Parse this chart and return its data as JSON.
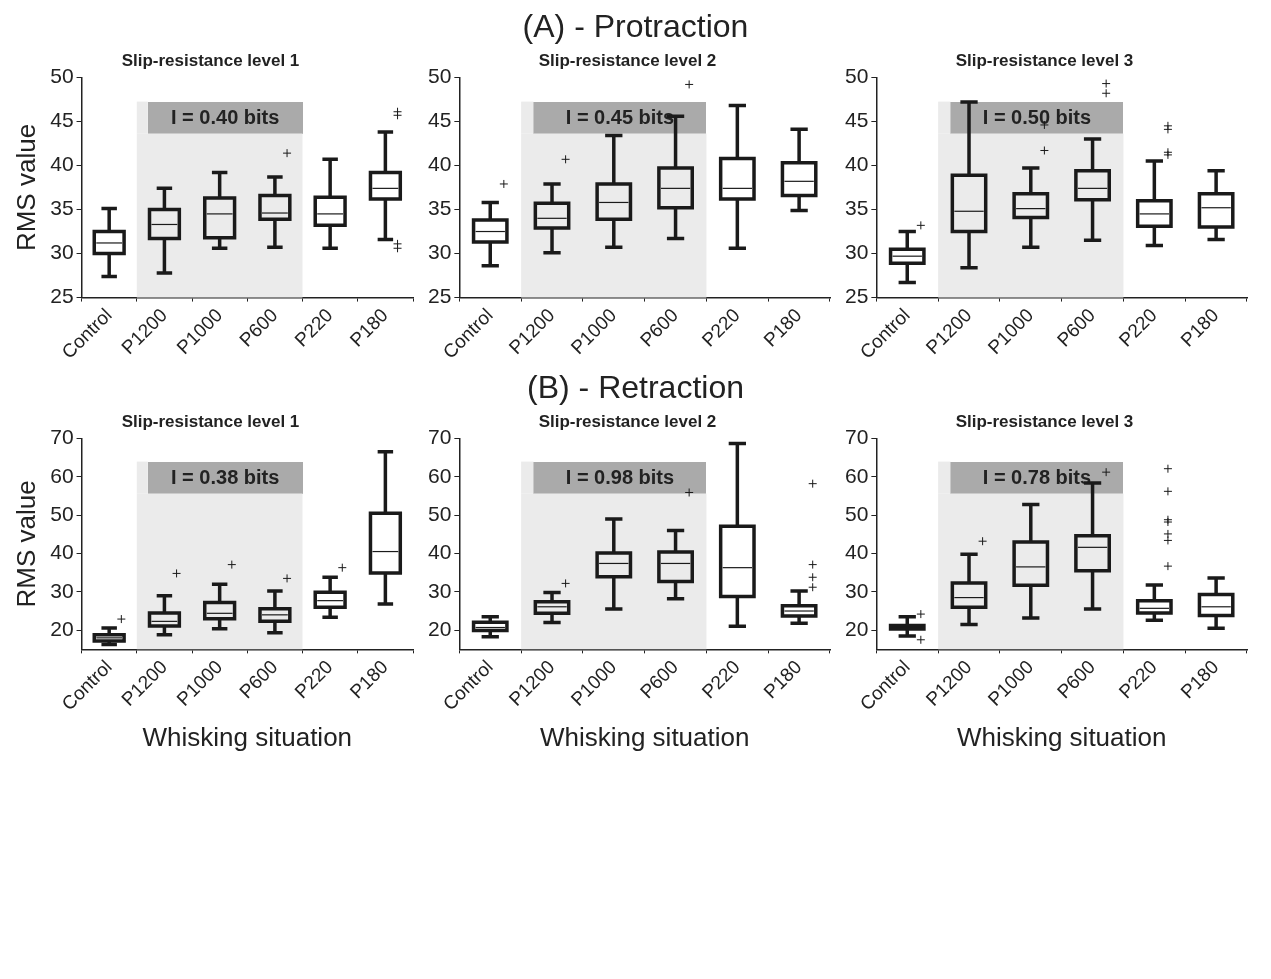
{
  "chart_data": [
    {
      "type": "other",
      "title": "(A) - Protraction"
    },
    {
      "type": "box",
      "title": "Slip-resistance level 1",
      "ylabel": "RMS value",
      "categories": [
        "Control",
        "P1200",
        "P1000",
        "P600",
        "P220",
        "P180"
      ],
      "color": "#1a1a1a",
      "marker": "cross",
      "ylim": [
        25,
        50
      ],
      "yticks": [
        25,
        30,
        35,
        40,
        45,
        50
      ],
      "grid": false,
      "bands": [
        {
          "axis": "x",
          "from": "P1200",
          "to": "P600",
          "label": "I = 0.40 bits",
          "color": "#ebebeb"
        }
      ],
      "boxes": [
        {
          "low": 27.4,
          "q1": 30.0,
          "median": 31.2,
          "q3": 32.5,
          "high": 35.1
        },
        {
          "low": 27.8,
          "q1": 31.7,
          "median": 33.3,
          "q3": 35.0,
          "high": 37.4
        },
        {
          "low": 30.6,
          "q1": 31.8,
          "median": 34.5,
          "q3": 36.3,
          "high": 39.2
        },
        {
          "low": 30.7,
          "q1": 33.9,
          "median": 34.6,
          "q3": 36.6,
          "high": 38.7,
          "outliers": [
            41.4
          ]
        },
        {
          "low": 30.6,
          "q1": 33.2,
          "median": 34.5,
          "q3": 36.4,
          "high": 40.7
        },
        {
          "low": 31.6,
          "q1": 36.2,
          "median": 37.4,
          "q3": 39.2,
          "high": 43.8,
          "outliers": [
            46.1,
            45.7,
            31.1,
            30.6
          ]
        }
      ]
    },
    {
      "type": "box",
      "title": "Slip-resistance level 2",
      "categories": [
        "Control",
        "P1200",
        "P1000",
        "P600",
        "P220",
        "P180"
      ],
      "color": "#1a1a1a",
      "marker": "cross",
      "ylim": [
        25,
        50
      ],
      "yticks": [
        25,
        30,
        35,
        40,
        45,
        50
      ],
      "grid": false,
      "bands": [
        {
          "axis": "x",
          "from": "P1200",
          "to": "P600",
          "label": "I = 0.45 bits",
          "color": "#ebebeb"
        }
      ],
      "boxes": [
        {
          "low": 28.6,
          "q1": 31.3,
          "median": 32.5,
          "q3": 33.8,
          "high": 35.8,
          "outliers": [
            37.9
          ]
        },
        {
          "low": 30.1,
          "q1": 32.9,
          "median": 34.0,
          "q3": 35.7,
          "high": 37.9,
          "outliers": [
            40.7
          ]
        },
        {
          "low": 30.7,
          "q1": 33.9,
          "median": 35.8,
          "q3": 37.9,
          "high": 43.4
        },
        {
          "low": 31.7,
          "q1": 35.2,
          "median": 37.4,
          "q3": 39.7,
          "high": 45.6,
          "outliers": [
            49.2
          ]
        },
        {
          "low": 30.6,
          "q1": 36.2,
          "median": 37.4,
          "q3": 40.8,
          "high": 46.8
        },
        {
          "low": 34.9,
          "q1": 36.6,
          "median": 38.2,
          "q3": 40.3,
          "high": 44.1
        }
      ]
    },
    {
      "type": "box",
      "title": "Slip-resistance level 3",
      "categories": [
        "Control",
        "P1200",
        "P1000",
        "P600",
        "P220",
        "P180"
      ],
      "color": "#1a1a1a",
      "marker": "cross",
      "ylim": [
        25,
        50
      ],
      "yticks": [
        25,
        30,
        35,
        40,
        45,
        50
      ],
      "grid": false,
      "bands": [
        {
          "axis": "x",
          "from": "P1200",
          "to": "P600",
          "label": "I = 0.50 bits",
          "color": "#ebebeb"
        }
      ],
      "boxes": [
        {
          "low": 26.7,
          "q1": 28.9,
          "median": 29.7,
          "q3": 30.5,
          "high": 32.5,
          "outliers": [
            33.2
          ]
        },
        {
          "low": 28.4,
          "q1": 32.5,
          "median": 34.8,
          "q3": 38.9,
          "high": 47.2
        },
        {
          "low": 30.7,
          "q1": 34.1,
          "median": 35.1,
          "q3": 36.8,
          "high": 39.7,
          "outliers": [
            44.6,
            41.7
          ]
        },
        {
          "low": 31.5,
          "q1": 36.1,
          "median": 37.4,
          "q3": 39.4,
          "high": 43.0,
          "outliers": [
            49.3,
            48.2
          ]
        },
        {
          "low": 30.9,
          "q1": 33.1,
          "median": 34.5,
          "q3": 36.0,
          "high": 40.5,
          "outliers": [
            44.5,
            44.1,
            41.5,
            41.2
          ]
        },
        {
          "low": 31.6,
          "q1": 33.0,
          "median": 35.2,
          "q3": 36.8,
          "high": 39.4
        }
      ]
    },
    {
      "type": "other",
      "title": "(B) - Retraction"
    },
    {
      "type": "box",
      "title": "Slip-resistance level 1",
      "ylabel": "RMS value",
      "xlabel": "Whisking situation",
      "categories": [
        "Control",
        "P1200",
        "P1000",
        "P600",
        "P220",
        "P180"
      ],
      "color": "#1a1a1a",
      "marker": "cross",
      "ylim": [
        15,
        70
      ],
      "yticks": [
        20,
        30,
        40,
        50,
        60,
        70
      ],
      "grid": false,
      "bands": [
        {
          "axis": "x",
          "from": "P1200",
          "to": "P600",
          "label": "I = 0.38 bits",
          "color": "#ebebeb"
        }
      ],
      "boxes": [
        {
          "low": 16.3,
          "q1": 17.2,
          "median": 18.0,
          "q3": 18.8,
          "high": 20.6,
          "outliers": [
            22.9
          ]
        },
        {
          "low": 18.8,
          "q1": 21.1,
          "median": 22.3,
          "q3": 24.5,
          "high": 29.0,
          "outliers": [
            34.8
          ]
        },
        {
          "low": 20.4,
          "q1": 23.0,
          "median": 24.4,
          "q3": 27.2,
          "high": 32.0,
          "outliers": [
            37.1
          ]
        },
        {
          "low": 19.3,
          "q1": 22.3,
          "median": 24.0,
          "q3": 25.6,
          "high": 30.2,
          "outliers": [
            33.5
          ]
        },
        {
          "low": 23.4,
          "q1": 26.0,
          "median": 27.7,
          "q3": 29.9,
          "high": 33.8,
          "outliers": [
            36.3
          ]
        },
        {
          "low": 26.8,
          "q1": 34.9,
          "median": 40.5,
          "q3": 50.5,
          "high": 66.5
        }
      ]
    },
    {
      "type": "box",
      "title": "Slip-resistance level 2",
      "xlabel": "Whisking situation",
      "categories": [
        "Control",
        "P1200",
        "P1000",
        "P600",
        "P220",
        "P180"
      ],
      "color": "#1a1a1a",
      "marker": "cross",
      "ylim": [
        15,
        70
      ],
      "yticks": [
        20,
        30,
        40,
        50,
        60,
        70
      ],
      "grid": false,
      "bands": [
        {
          "axis": "x",
          "from": "P1200",
          "to": "P600",
          "label": "I = 0.98 bits",
          "color": "#ebebeb"
        }
      ],
      "boxes": [
        {
          "low": 18.3,
          "q1": 19.9,
          "median": 20.7,
          "q3": 22.1,
          "high": 23.5
        },
        {
          "low": 22.0,
          "q1": 24.4,
          "median": 26.1,
          "q3": 27.4,
          "high": 29.8,
          "outliers": [
            32.2
          ]
        },
        {
          "low": 25.5,
          "q1": 33.9,
          "median": 37.4,
          "q3": 40.1,
          "high": 49.0
        },
        {
          "low": 28.2,
          "q1": 32.7,
          "median": 37.4,
          "q3": 40.4,
          "high": 46.0,
          "outliers": [
            55.9
          ]
        },
        {
          "low": 21.0,
          "q1": 28.8,
          "median": 36.3,
          "q3": 47.1,
          "high": 68.7
        },
        {
          "low": 21.8,
          "q1": 23.7,
          "median": 25.0,
          "q3": 26.4,
          "high": 30.2,
          "outliers": [
            58.2,
            37.1,
            33.8,
            31.2
          ]
        }
      ]
    },
    {
      "type": "box",
      "title": "Slip-resistance level 3",
      "xlabel": "Whisking situation",
      "categories": [
        "Control",
        "P1200",
        "P1000",
        "P600",
        "P220",
        "P180"
      ],
      "color": "#1a1a1a",
      "marker": "cross",
      "ylim": [
        15,
        70
      ],
      "yticks": [
        20,
        30,
        40,
        50,
        60,
        70
      ],
      "grid": false,
      "bands": [
        {
          "axis": "x",
          "from": "P1200",
          "to": "P600",
          "label": "I = 0.78 bits",
          "color": "#ebebeb"
        }
      ],
      "boxes": [
        {
          "low": 18.5,
          "q1": 20.3,
          "median": 20.8,
          "q3": 21.2,
          "high": 23.5,
          "outliers": [
            24.2,
            17.5
          ]
        },
        {
          "low": 21.5,
          "q1": 26.0,
          "median": 28.5,
          "q3": 32.3,
          "high": 39.8,
          "outliers": [
            43.2
          ]
        },
        {
          "low": 23.2,
          "q1": 31.7,
          "median": 36.5,
          "q3": 43.0,
          "high": 52.8
        },
        {
          "low": 25.5,
          "q1": 35.5,
          "median": 41.6,
          "q3": 44.6,
          "high": 58.4,
          "outliers": [
            61.2
          ]
        },
        {
          "low": 22.6,
          "q1": 24.5,
          "median": 25.7,
          "q3": 27.7,
          "high": 31.8,
          "outliers": [
            62.1,
            56.2,
            48.8,
            48.2,
            45.1,
            43.4,
            36.7
          ]
        },
        {
          "low": 20.5,
          "q1": 23.8,
          "median": 26.1,
          "q3": 29.3,
          "high": 33.6
        }
      ]
    }
  ]
}
